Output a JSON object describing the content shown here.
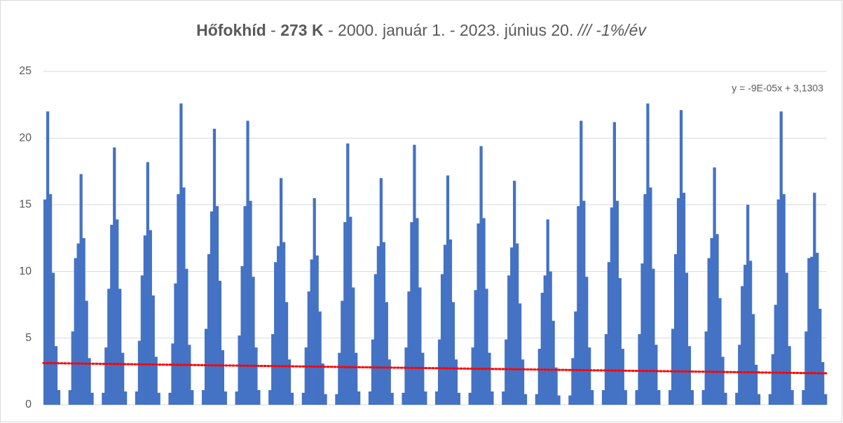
{
  "chart_data": {
    "type": "bar",
    "title_parts": [
      {
        "text": "Hőfokhíd",
        "weight": "bold",
        "style": "normal"
      },
      {
        "text": " - ",
        "weight": "normal",
        "style": "normal"
      },
      {
        "text": "273 K",
        "weight": "bold",
        "style": "normal"
      },
      {
        "text": " - 2000. január 1. - 2023. június 20. ",
        "weight": "normal",
        "style": "normal"
      },
      {
        "text": "/// -1%/év",
        "weight": "normal",
        "style": "italic"
      }
    ],
    "color": "#4472c4",
    "ylim": [
      0,
      25
    ],
    "yticks": [
      0,
      5,
      10,
      15,
      20,
      25
    ],
    "grid": true,
    "trendline": {
      "equation": "y = -9E-05x + 3,1303",
      "color": "#ff0000",
      "values": [
        3.13,
        2.36
      ]
    },
    "values": [
      15.4,
      22,
      15.8,
      9.9,
      4.4,
      1.1,
      0,
      0,
      0,
      1.1,
      5.5,
      11,
      12.1,
      17.3,
      12.5,
      7.8,
      3.5,
      0.9,
      0,
      0,
      0,
      0.9,
      4.3,
      8.7,
      13.5,
      19.3,
      13.9,
      8.7,
      3.9,
      1,
      0,
      0,
      0,
      1,
      4.8,
      9.7,
      12.7,
      18.2,
      13.1,
      8.2,
      3.6,
      0.9,
      0,
      0,
      0,
      0.9,
      4.6,
      9.1,
      15.8,
      22.6,
      16.3,
      10.2,
      4.5,
      1.1,
      0,
      0,
      0,
      1.1,
      5.7,
      11.3,
      14.5,
      20.7,
      14.9,
      9.3,
      4.1,
      1,
      0,
      0,
      0,
      1,
      5.2,
      10.4,
      14.9,
      21.3,
      15.3,
      9.6,
      4.3,
      1.1,
      0,
      0,
      0,
      1.1,
      5.3,
      10.7,
      11.9,
      17,
      12.2,
      7.7,
      3.4,
      0.9,
      0,
      0,
      0,
      0.9,
      4.3,
      8.5,
      10.9,
      15.5,
      11.2,
      7,
      3.1,
      0.8,
      0,
      0,
      0,
      0.8,
      3.9,
      7.8,
      13.7,
      19.6,
      14.1,
      8.8,
      3.9,
      1,
      0,
      0,
      0,
      1,
      4.9,
      9.8,
      11.9,
      17,
      12.2,
      7.7,
      3.4,
      0.9,
      0,
      0,
      0,
      0.9,
      4.3,
      8.5,
      13.7,
      19.5,
      14,
      8.8,
      3.9,
      1,
      0,
      0,
      0,
      1,
      4.9,
      9.8,
      12,
      17.2,
      12.4,
      7.7,
      3.4,
      0.9,
      0,
      0,
      0,
      0.9,
      4.3,
      8.6,
      13.6,
      19.4,
      14,
      8.7,
      3.9,
      1,
      0,
      0,
      0,
      1,
      4.9,
      9.7,
      11.8,
      16.8,
      12.1,
      7.6,
      3.4,
      0.8,
      0,
      0,
      0,
      0.8,
      4.2,
      8.4,
      9.7,
      13.9,
      10,
      6.3,
      2.8,
      0.7,
      0,
      0,
      0,
      0.7,
      3.5,
      7,
      14.9,
      21.3,
      15.3,
      9.6,
      4.3,
      1.1,
      0,
      0,
      0,
      1.1,
      5.3,
      10.7,
      14.8,
      21.2,
      15.3,
      9.5,
      4.2,
      1.1,
      0,
      0,
      0,
      1.1,
      5.3,
      10.6,
      15.8,
      22.6,
      16.3,
      10.2,
      4.5,
      1.1,
      0,
      0,
      0,
      1.1,
      5.7,
      11.3,
      15.5,
      22.1,
      15.9,
      9.9,
      4.4,
      1.1,
      0,
      0,
      0,
      1.1,
      5.5,
      11,
      12.5,
      17.8,
      12.8,
      8,
      3.6,
      0.9,
      0,
      0,
      0,
      0.9,
      4.5,
      8.9,
      10.5,
      15,
      10.8,
      6.8,
      3,
      0.8,
      0,
      0,
      0,
      0.8,
      3.8,
      7.5,
      15.4,
      22,
      15.8,
      9.9,
      4.4,
      1.1,
      0,
      0,
      0,
      1.1,
      5.5,
      11,
      11.1,
      15.9,
      11.4,
      7.2,
      3.2,
      0.8
    ]
  }
}
